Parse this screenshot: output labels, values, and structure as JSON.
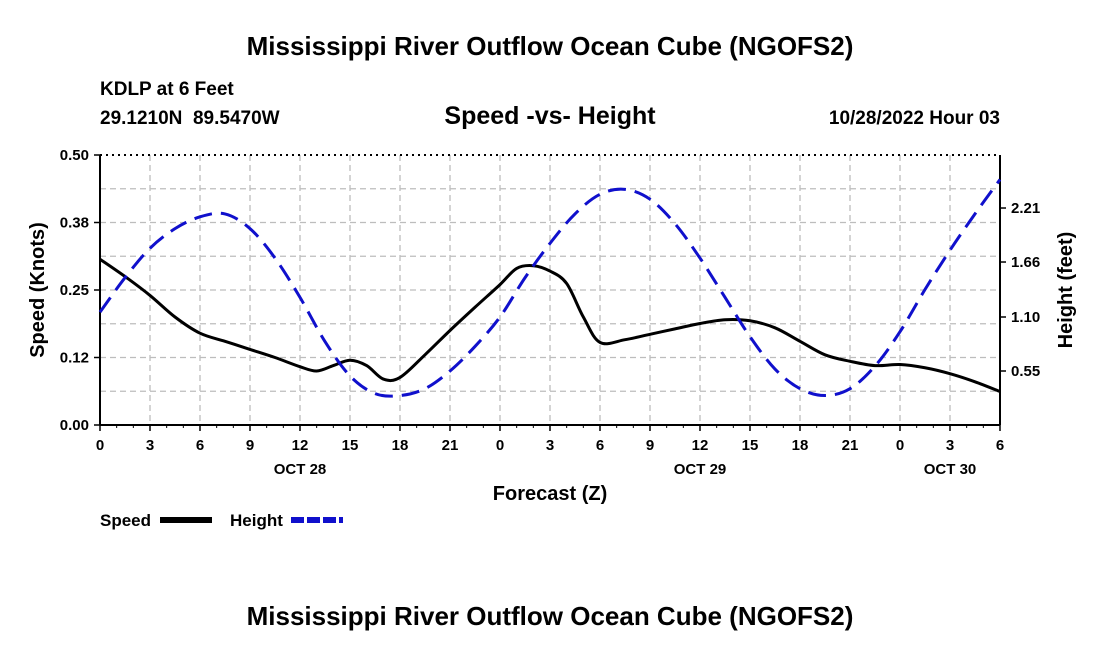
{
  "titles": {
    "main": "Mississippi River Outflow Ocean Cube (NGOFS2)",
    "repeat": "Mississippi River Outflow Ocean Cube (NGOFS2)"
  },
  "header": {
    "station": "KDLP at 6 Feet",
    "coords": "29.1210N  89.5470W",
    "chart_title": "Speed -vs- Height",
    "datetime": "10/28/2022 Hour 03"
  },
  "colors": {
    "speed": "#000000",
    "height": "#1010cc",
    "grid": "#bdbdbd"
  },
  "chart_data": {
    "type": "line",
    "title": "Speed -vs- Height",
    "xlabel": "Forecast (Z)",
    "ylabel": "Speed (Knots)",
    "y2label": "Height (feet)",
    "grid": true,
    "legend_position": "bottom-left",
    "xlim": [
      0,
      54
    ],
    "ylim": [
      0,
      0.5
    ],
    "y2lim": [
      0,
      2.75
    ],
    "x_ticks": [
      0,
      3,
      6,
      9,
      12,
      15,
      18,
      21,
      24,
      27,
      30,
      33,
      36,
      39,
      42,
      45,
      48,
      51,
      54
    ],
    "x_tick_labels": [
      "0",
      "3",
      "6",
      "9",
      "12",
      "15",
      "18",
      "21",
      "0",
      "3",
      "6",
      "9",
      "12",
      "15",
      "18",
      "21",
      "0",
      "3",
      "6"
    ],
    "x_day_labels": [
      {
        "x": 12,
        "label": "OCT 28"
      },
      {
        "x": 36,
        "label": "OCT 29"
      },
      {
        "x": 51,
        "label": "OCT 30"
      }
    ],
    "y_ticks": [
      0.0,
      0.125,
      0.25,
      0.375,
      0.5
    ],
    "y_tick_labels": [
      "0.00",
      "0.12",
      "0.25",
      "0.38",
      "0.50"
    ],
    "y2_ticks": [
      0.55,
      1.1,
      1.66,
      2.21
    ],
    "y2_tick_labels": [
      "0.55",
      "1.10",
      "1.66",
      "2.21"
    ],
    "series": [
      {
        "name": "Speed",
        "axis": "left",
        "style": "solid",
        "x": [
          0,
          1.5,
          3,
          4.5,
          6,
          7.5,
          9,
          10.5,
          12,
          13,
          14,
          15,
          16,
          17,
          18,
          19.5,
          21,
          22.5,
          24,
          25,
          26,
          27,
          28,
          29,
          30,
          31.5,
          33,
          34.5,
          36,
          37.5,
          39,
          40.5,
          42,
          43.5,
          45,
          46.5,
          48,
          49.5,
          51,
          52.5,
          54
        ],
        "values": [
          0.307,
          0.275,
          0.24,
          0.2,
          0.17,
          0.155,
          0.14,
          0.125,
          0.108,
          0.1,
          0.11,
          0.12,
          0.11,
          0.085,
          0.088,
          0.13,
          0.175,
          0.218,
          0.26,
          0.29,
          0.295,
          0.285,
          0.262,
          0.2,
          0.153,
          0.158,
          0.168,
          0.178,
          0.188,
          0.195,
          0.193,
          0.18,
          0.155,
          0.13,
          0.118,
          0.11,
          0.112,
          0.106,
          0.095,
          0.08,
          0.062
        ]
      },
      {
        "name": "Height",
        "axis": "right",
        "style": "dashed",
        "x": [
          0,
          1.5,
          3,
          4.5,
          6,
          7.5,
          9,
          10.5,
          12,
          13.5,
          15,
          16.5,
          18,
          19.5,
          21,
          22.5,
          24,
          25.5,
          27,
          28.5,
          30,
          31.5,
          33,
          34.5,
          36,
          37.5,
          39,
          40.5,
          42,
          43.5,
          45,
          46.5,
          48,
          49.5,
          51,
          52.5,
          54
        ],
        "values": [
          1.15,
          1.5,
          1.8,
          2.0,
          2.12,
          2.15,
          2.0,
          1.7,
          1.3,
          0.85,
          0.5,
          0.32,
          0.3,
          0.37,
          0.55,
          0.8,
          1.1,
          1.5,
          1.85,
          2.15,
          2.35,
          2.4,
          2.3,
          2.05,
          1.7,
          1.3,
          0.9,
          0.57,
          0.37,
          0.3,
          0.37,
          0.6,
          0.95,
          1.38,
          1.78,
          2.15,
          2.5
        ]
      }
    ]
  }
}
